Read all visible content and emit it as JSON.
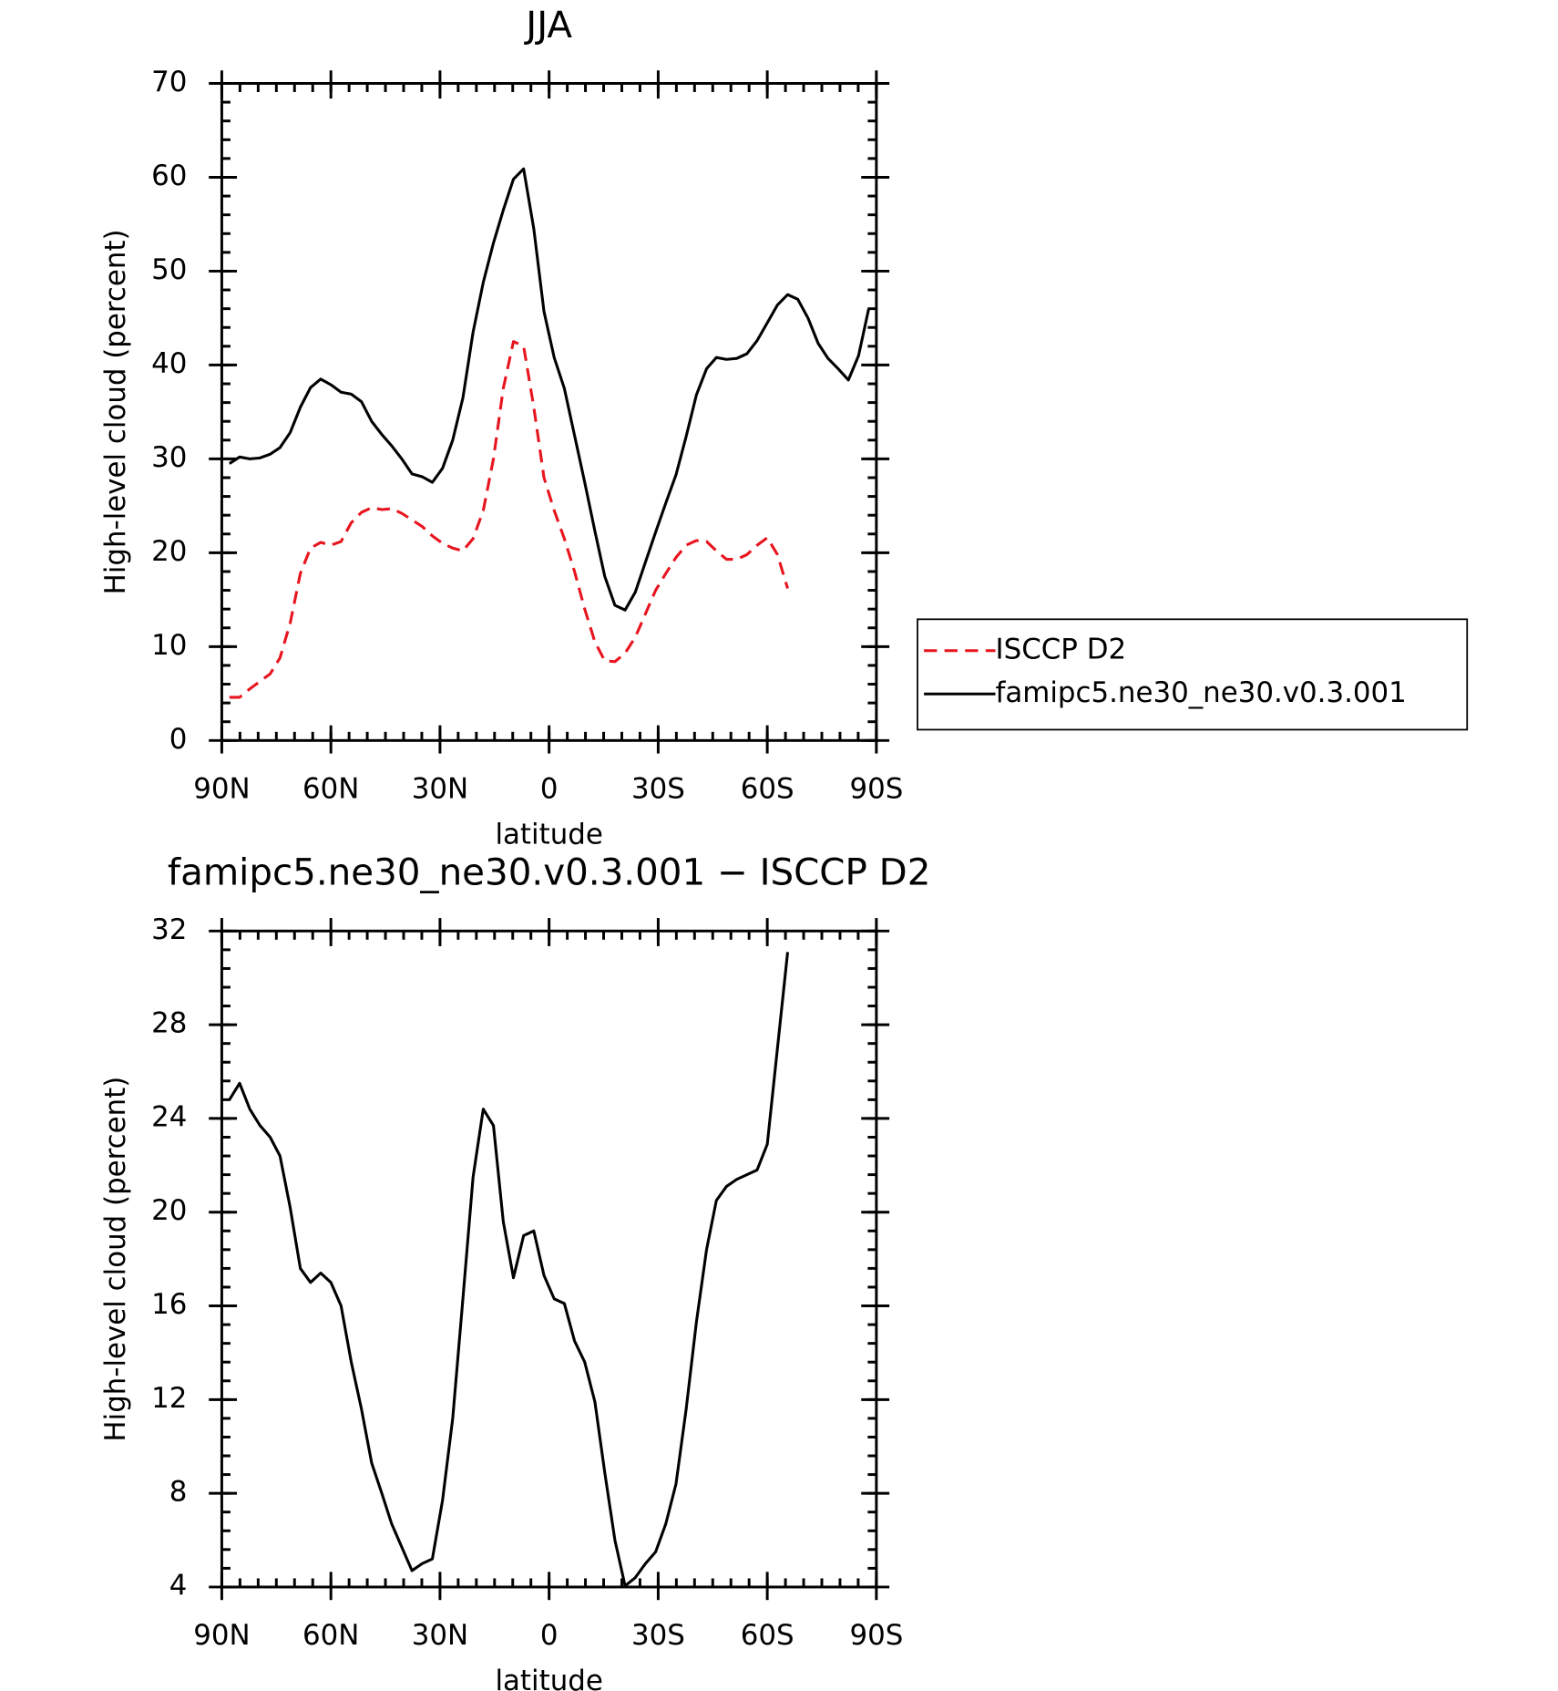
{
  "chart_data": [
    {
      "type": "line",
      "title": "JJA",
      "xlabel": "latitude",
      "ylabel": "High-level cloud (percent)",
      "xlim": [
        90,
        -90
      ],
      "ylim": [
        0,
        70
      ],
      "xticks": [
        {
          "value": 90,
          "label": "90N"
        },
        {
          "value": 60,
          "label": "60N"
        },
        {
          "value": 30,
          "label": "30N"
        },
        0,
        {
          "value": -30,
          "label": "30S"
        },
        {
          "value": -60,
          "label": "60S"
        },
        {
          "value": -90,
          "label": "90S"
        }
      ],
      "yticks": [
        0,
        10,
        20,
        30,
        40,
        50,
        60,
        70
      ],
      "legend": "right",
      "series": [
        {
          "name": "ISCCP D2",
          "color": "#e8141e",
          "dash": true,
          "x": [
            87.9,
            85.1,
            82.3,
            79.5,
            76.7,
            74.0,
            71.2,
            68.4,
            65.6,
            62.8,
            60.0,
            57.2,
            54.4,
            51.6,
            48.8,
            46.0,
            43.3,
            40.5,
            37.7,
            34.9,
            32.1,
            29.3,
            26.5,
            23.7,
            20.9,
            18.1,
            15.3,
            12.6,
            9.8,
            7.0,
            4.2,
            1.4,
            -1.4,
            -4.2,
            -7.0,
            -9.8,
            -12.6,
            -15.3,
            -18.1,
            -20.9,
            -23.7,
            -26.5,
            -29.3,
            -32.1,
            -34.9,
            -37.7,
            -40.5,
            -43.3,
            -46.0,
            -48.8,
            -51.6,
            -54.4,
            -57.2,
            -60.0,
            -62.8,
            -65.6
          ],
          "values": [
            4.6,
            4.6,
            5.5,
            6.3,
            7.1,
            8.8,
            12.5,
            17.8,
            20.5,
            21.1,
            20.8,
            21.2,
            23.2,
            24.3,
            24.8,
            24.6,
            24.7,
            24.2,
            23.5,
            22.8,
            21.8,
            21.0,
            20.5,
            20.2,
            21.5,
            24.5,
            30.0,
            37.5,
            42.5,
            42.0,
            35.5,
            28.0,
            24.5,
            21.5,
            18.0,
            14.0,
            10.5,
            8.5,
            8.4,
            9.3,
            11.0,
            13.5,
            16.0,
            17.8,
            19.5,
            20.8,
            21.3,
            21.2,
            20.2,
            19.3,
            19.3,
            19.8,
            20.8,
            21.6,
            19.8,
            16.2
          ]
        },
        {
          "name": "famipc5.ne30_ne30.v0.3.001",
          "color": "#000000",
          "dash": false,
          "x": [
            87.9,
            85.1,
            82.3,
            79.5,
            76.7,
            74.0,
            71.2,
            68.4,
            65.6,
            62.8,
            60.0,
            57.2,
            54.4,
            51.6,
            48.8,
            46.0,
            43.3,
            40.5,
            37.7,
            34.9,
            32.1,
            29.3,
            26.5,
            23.7,
            20.9,
            18.1,
            15.3,
            12.6,
            9.8,
            7.0,
            4.2,
            1.4,
            -1.4,
            -4.2,
            -7.0,
            -9.8,
            -12.6,
            -15.3,
            -18.1,
            -20.9,
            -23.7,
            -26.5,
            -29.3,
            -32.1,
            -34.9,
            -37.7,
            -40.5,
            -43.3,
            -46.0,
            -48.8,
            -51.6,
            -54.4,
            -57.2,
            -60.0,
            -62.8,
            -65.6,
            -68.4,
            -71.2,
            -74.0,
            -76.7,
            -79.5,
            -82.3,
            -85.1,
            -87.9
          ],
          "values": [
            29.5,
            30.2,
            30.0,
            30.1,
            30.5,
            31.2,
            32.8,
            35.5,
            37.6,
            38.5,
            37.9,
            37.1,
            36.9,
            36.1,
            34.0,
            32.6,
            31.4,
            30.0,
            28.4,
            28.1,
            27.5,
            29.0,
            32.0,
            36.5,
            43.5,
            48.8,
            53.0,
            56.5,
            59.8,
            60.9,
            54.5,
            45.7,
            40.8,
            37.5,
            32.5,
            27.5,
            22.3,
            17.5,
            14.4,
            13.9,
            15.8,
            19.0,
            22.2,
            25.3,
            28.3,
            32.4,
            36.8,
            39.6,
            40.8,
            40.6,
            40.7,
            41.2,
            42.6,
            44.5,
            46.4,
            47.5,
            47.0,
            45.0,
            42.3,
            40.7,
            39.6,
            38.4,
            41.0,
            46.0
          ]
        }
      ]
    },
    {
      "type": "line",
      "title": "famipc5.ne30_ne30.v0.3.001 − ISCCP D2",
      "xlabel": "latitude",
      "ylabel": "High-level cloud (percent)",
      "xlim": [
        90,
        -90
      ],
      "ylim": [
        4,
        32
      ],
      "xticks": [
        {
          "value": 90,
          "label": "90N"
        },
        {
          "value": 60,
          "label": "60N"
        },
        {
          "value": 30,
          "label": "30N"
        },
        0,
        {
          "value": -30,
          "label": "30S"
        },
        {
          "value": -60,
          "label": "60S"
        },
        {
          "value": -90,
          "label": "90S"
        }
      ],
      "yticks": [
        4,
        8,
        12,
        16,
        20,
        24,
        28,
        32
      ],
      "series": [
        {
          "color": "#000000",
          "dash": false,
          "x": [
            87.9,
            85.1,
            82.3,
            79.5,
            76.7,
            74.0,
            71.2,
            68.4,
            65.6,
            62.8,
            60.0,
            57.2,
            54.4,
            51.6,
            48.8,
            46.0,
            43.3,
            40.5,
            37.7,
            34.9,
            32.1,
            29.3,
            26.5,
            23.7,
            20.9,
            18.1,
            15.3,
            12.6,
            9.8,
            7.0,
            4.2,
            1.4,
            -1.4,
            -4.2,
            -7.0,
            -9.8,
            -12.6,
            -15.3,
            -18.1,
            -20.9,
            -23.7,
            -26.5,
            -29.3,
            -32.1,
            -34.9,
            -37.7,
            -40.5,
            -43.3,
            -46.0,
            -48.8,
            -51.6,
            -54.4,
            -57.2,
            -60.0,
            -62.8,
            -65.6
          ],
          "values": [
            24.8,
            25.5,
            24.4,
            23.7,
            23.2,
            22.4,
            20.2,
            17.6,
            17.0,
            17.4,
            17.0,
            16.0,
            13.6,
            11.6,
            9.3,
            8.0,
            6.7,
            5.7,
            4.7,
            5.0,
            5.2,
            7.7,
            11.2,
            16.3,
            21.5,
            24.4,
            23.7,
            19.6,
            17.2,
            19.0,
            19.2,
            17.3,
            16.3,
            16.1,
            14.5,
            13.6,
            11.9,
            8.9,
            6.0,
            4.05,
            4.4,
            5.0,
            5.5,
            6.7,
            8.4,
            11.6,
            15.3,
            18.4,
            20.5,
            21.1,
            21.4,
            21.6,
            21.8,
            22.9,
            27.0,
            31.1
          ]
        }
      ]
    }
  ]
}
